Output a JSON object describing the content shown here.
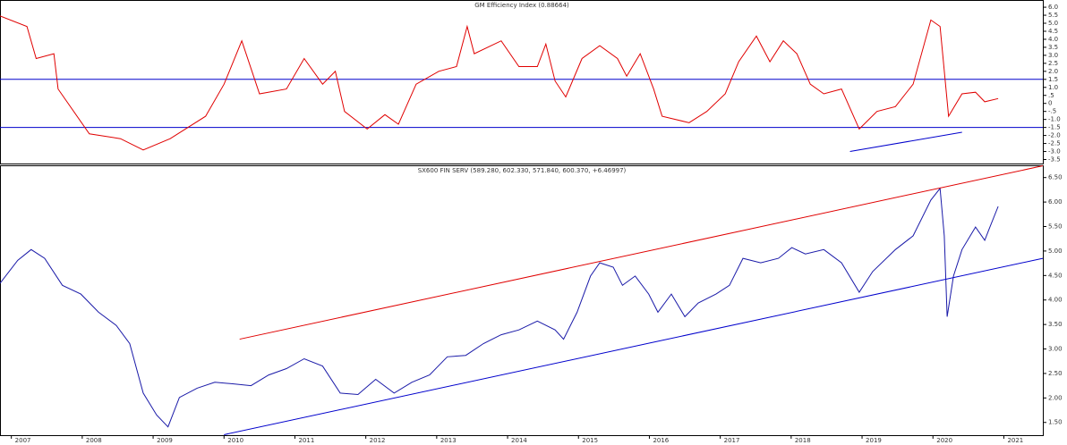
{
  "chart_data": [
    {
      "type": "line",
      "title": "GM Efficiency Index (0.88664)",
      "xlim": [
        2006.84,
        2021.55
      ],
      "ylim": [
        -3.75,
        6.45
      ],
      "yticks": [
        {
          "value": 6,
          "label": "6.0"
        },
        5.5,
        {
          "value": 5,
          "label": "5.0"
        },
        4.5,
        {
          "value": 4,
          "label": "4.0"
        },
        3.5,
        {
          "value": 3,
          "label": "3.0"
        },
        2.5,
        {
          "value": 2,
          "label": "2.0"
        },
        1.5,
        {
          "value": 1,
          "label": "1.0"
        },
        {
          "value": 0.5,
          "label": ".5"
        },
        0,
        {
          "value": -0.5,
          "label": "-.5"
        },
        {
          "value": -1,
          "label": "-1.0"
        },
        -1.5,
        {
          "value": -2,
          "label": "-2.0"
        },
        -2.5,
        {
          "value": -3,
          "label": "-3.0"
        },
        -3.5
      ],
      "hlines": [
        1.5,
        -1.5
      ],
      "hline_color": "#0000cc",
      "trendlines": [
        {
          "color": "#0000cc",
          "x": [
            2018.83,
            2020.41
          ],
          "y": [
            -3.0,
            -1.8
          ]
        }
      ],
      "series": [
        {
          "name": "GM Efficiency Index",
          "color": "#e00000",
          "x": [
            2006.84,
            2007.22,
            2007.35,
            2007.6,
            2007.66,
            2008.1,
            2008.54,
            2008.86,
            2009.24,
            2009.74,
            2010.0,
            2010.25,
            2010.5,
            2010.88,
            2011.13,
            2011.39,
            2011.57,
            2011.7,
            2012.02,
            2012.27,
            2012.46,
            2012.71,
            2013.03,
            2013.28,
            2013.43,
            2013.53,
            2013.91,
            2014.16,
            2014.42,
            2014.54,
            2014.67,
            2014.82,
            2015.05,
            2015.3,
            2015.55,
            2015.68,
            2015.87,
            2016.06,
            2016.18,
            2016.56,
            2016.81,
            2017.07,
            2017.26,
            2017.51,
            2017.7,
            2017.89,
            2018.08,
            2018.27,
            2018.46,
            2018.71,
            2018.96,
            2019.21,
            2019.47,
            2019.72,
            2019.97,
            2020.1,
            2020.22,
            2020.41,
            2020.6,
            2020.73,
            2020.92
          ],
          "values": [
            5.45,
            4.8,
            2.8,
            3.1,
            0.9,
            -1.9,
            -2.2,
            -2.9,
            -2.2,
            -0.8,
            1.2,
            3.9,
            0.6,
            0.9,
            2.8,
            1.2,
            2.0,
            -0.5,
            -1.6,
            -0.7,
            -1.3,
            1.2,
            2.0,
            2.3,
            4.8,
            3.1,
            3.9,
            2.3,
            2.3,
            3.7,
            1.4,
            0.4,
            2.8,
            3.6,
            2.8,
            1.7,
            3.1,
            0.9,
            -0.8,
            -1.2,
            -0.5,
            0.6,
            2.6,
            4.2,
            2.6,
            3.9,
            3.1,
            1.2,
            0.6,
            0.9,
            -1.6,
            -0.5,
            -0.2,
            1.2,
            5.2,
            4.8,
            -0.8,
            0.6,
            0.7,
            0.1,
            0.3
          ]
        }
      ]
    },
    {
      "type": "line",
      "title": "SX600 FIN SERV (589.280, 602.330, 571.840, 600.370, +6.46997)",
      "xlim": [
        2006.84,
        2021.55
      ],
      "ylim": [
        124,
        675
      ],
      "xticks": [
        2007,
        2008,
        2009,
        2010,
        2011,
        2012,
        2013,
        2014,
        2015,
        2016,
        2017,
        2018,
        2019,
        2020,
        2021
      ],
      "yticks": [
        {
          "value": 650,
          "label": "6.50"
        },
        {
          "value": 600,
          "label": "6.00"
        },
        {
          "value": 550,
          "label": "5.50"
        },
        {
          "value": 500,
          "label": "5.00"
        },
        {
          "value": 450,
          "label": "4.50"
        },
        {
          "value": 400,
          "label": "4.00"
        },
        {
          "value": 350,
          "label": "3.50"
        },
        {
          "value": 300,
          "label": "3.00"
        },
        {
          "value": 250,
          "label": "2.50"
        },
        {
          "value": 200,
          "label": "2.00"
        },
        {
          "value": 150,
          "label": "1.50"
        }
      ],
      "trendlines": [
        {
          "color": "#e00000",
          "x": [
            2010.22,
            2021.55
          ],
          "y": [
            320,
            674
          ]
        },
        {
          "color": "#0000cc",
          "x": [
            2010.0,
            2021.55
          ],
          "y": [
            125,
            485
          ]
        }
      ],
      "series": [
        {
          "name": "SX600 FIN SERV",
          "color": "#1a1aa8",
          "x": [
            2006.84,
            2007.09,
            2007.28,
            2007.47,
            2007.72,
            2007.98,
            2008.23,
            2008.48,
            2008.67,
            2008.86,
            2009.05,
            2009.21,
            2009.37,
            2009.62,
            2009.87,
            2010.12,
            2010.38,
            2010.63,
            2010.88,
            2011.13,
            2011.39,
            2011.64,
            2011.89,
            2012.14,
            2012.4,
            2012.65,
            2012.9,
            2013.15,
            2013.41,
            2013.66,
            2013.91,
            2014.16,
            2014.42,
            2014.67,
            2014.79,
            2014.98,
            2015.17,
            2015.3,
            2015.49,
            2015.62,
            2015.8,
            2015.99,
            2016.12,
            2016.31,
            2016.5,
            2016.69,
            2016.94,
            2017.13,
            2017.32,
            2017.57,
            2017.82,
            2018.01,
            2018.2,
            2018.46,
            2018.71,
            2018.96,
            2019.15,
            2019.47,
            2019.72,
            2019.97,
            2020.1,
            2020.16,
            2020.2,
            2020.29,
            2020.41,
            2020.6,
            2020.73,
            2020.79,
            2020.92
          ],
          "values": [
            434,
            481,
            503,
            485,
            430,
            412,
            375,
            348,
            311,
            210,
            165,
            141,
            201,
            220,
            232,
            229,
            225,
            247,
            260,
            280,
            265,
            210,
            207,
            238,
            210,
            232,
            247,
            284,
            287,
            311,
            329,
            339,
            357,
            339,
            320,
            375,
            449,
            476,
            467,
            430,
            449,
            412,
            375,
            412,
            366,
            394,
            412,
            430,
            485,
            476,
            485,
            507,
            494,
            503,
            476,
            416,
            458,
            503,
            531,
            604,
            628,
            531,
            366,
            449,
            503,
            549,
            522,
            544,
            591
          ]
        }
      ]
    }
  ]
}
